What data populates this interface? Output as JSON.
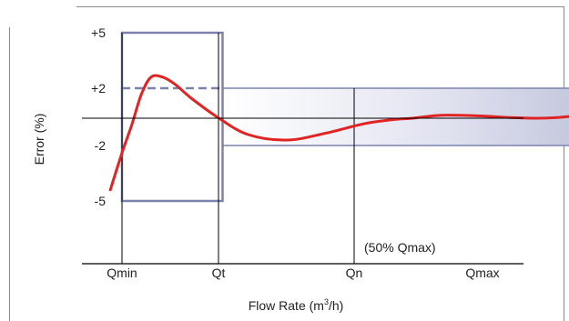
{
  "chart_data": {
    "type": "line",
    "title": "",
    "xlabel_main": "Flow Rate (m",
    "xlabel_sup": "3",
    "xlabel_end": "/h)",
    "ylabel": "Error (%)",
    "x_ticks": [
      "Qmin",
      "Qt",
      "Qn",
      "Qmax"
    ],
    "y_ticks": [
      "+5",
      "+2",
      "-2",
      "-5"
    ],
    "ylim": [
      -9,
      7
    ],
    "annotation": "(50% Qmax)",
    "series": [
      {
        "color": "#e02424",
        "points": [
          [
            -0.12,
            -4.4
          ],
          [
            0.0,
            -2.4
          ],
          [
            0.1,
            -0.5
          ],
          [
            0.2,
            1.6
          ],
          [
            0.3,
            2.6
          ],
          [
            0.42,
            2.6
          ],
          [
            0.55,
            2.2
          ],
          [
            0.72,
            1.3
          ],
          [
            1.0,
            0.0
          ],
          [
            1.3,
            -1.2
          ],
          [
            1.7,
            -1.6
          ],
          [
            2.1,
            -1.1
          ],
          [
            2.5,
            -0.4
          ],
          [
            2.8,
            -0.1
          ],
          [
            3.0,
            0.0
          ],
          [
            3.3,
            0.2
          ],
          [
            3.7,
            0.15
          ],
          [
            4.0,
            0.05
          ],
          [
            4.3,
            0.0
          ],
          [
            4.6,
            0.1
          ],
          [
            4.9,
            0.4
          ],
          [
            5.2,
            0.9
          ],
          [
            5.3,
            1.1
          ]
        ]
      }
    ],
    "tolerance_bands": {
      "low_flow": {
        "x_range": [
          0,
          1
        ],
        "upper": 5,
        "lower": -5,
        "color": "#7b83aa"
      },
      "high_flow": {
        "x_range": [
          1,
          5.3
        ],
        "upper": 2,
        "lower": -2,
        "color": "#7b83aa"
      },
      "dashed_level": 2
    },
    "colors": {
      "line": "#e02424",
      "band": "#7b83aa",
      "axis": "#000000"
    }
  }
}
